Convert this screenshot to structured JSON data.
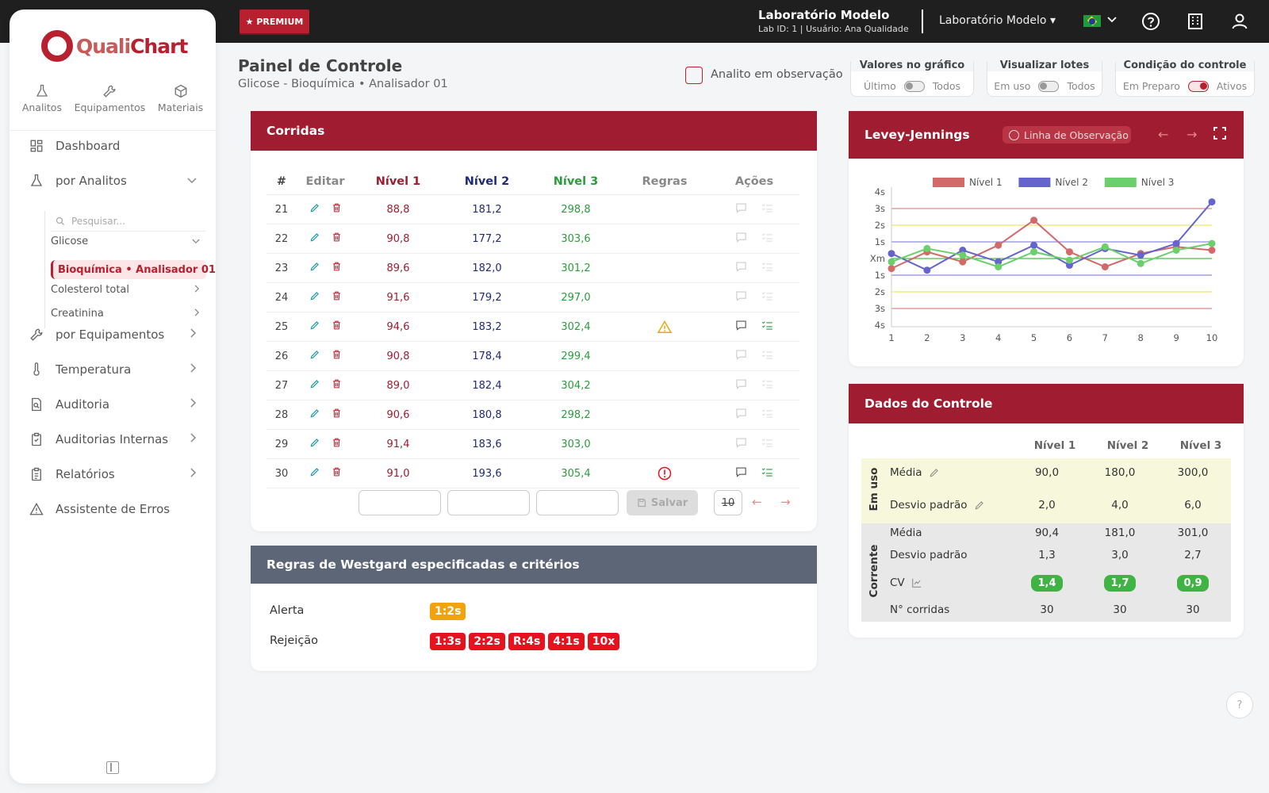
{
  "topbar": {
    "premium": "PREMIUM",
    "lab_name": "Laboratório Modelo",
    "lab_sub": "Lab ID: 1 | Usuário: Ana Qualidade",
    "lab_select": "Laboratório Modelo"
  },
  "sidebar": {
    "logo_main": "Quali",
    "logo_chart": "Chart",
    "tabs": [
      {
        "label": "Analitos",
        "icon": "flask-icon"
      },
      {
        "label": "Equipamentos",
        "icon": "wrench-icon"
      },
      {
        "label": "Materiais",
        "icon": "box-icon"
      }
    ],
    "items": [
      {
        "label": "Dashboard",
        "icon": "dashboard-icon"
      },
      {
        "label": "por Analitos",
        "icon": "flask-icon"
      },
      {
        "label": "por Equipamentos",
        "icon": "wrench-icon"
      },
      {
        "label": "Temperatura",
        "icon": "thermometer-icon"
      },
      {
        "label": "Auditoria",
        "icon": "audit-icon"
      },
      {
        "label": "Auditorias Internas",
        "icon": "clipboard-check-icon"
      },
      {
        "label": "Relatórios",
        "icon": "report-icon"
      },
      {
        "label": "Assistente de Erros",
        "icon": "warning-icon"
      }
    ],
    "search_placeholder": "Pesquisar...",
    "sub": {
      "glicose": "Glicose",
      "active": "Bioquímica • Analisador 01",
      "colesterol": "Colesterol total",
      "creatinina": "Creatinina"
    }
  },
  "header": {
    "title": "Painel de Controle",
    "subtitle": "Glicose - Bioquímica • Analisador 01",
    "obs_label": "Analito em observação",
    "toggles": [
      {
        "title": "Valores no gráfico",
        "left": "Último",
        "right": "Todos",
        "on": false
      },
      {
        "title": "Visualizar lotes",
        "left": "Em uso",
        "right": "Todos",
        "on": false
      },
      {
        "title": "Condição do controle",
        "left": "Em Preparo",
        "right": "Ativos",
        "on": true
      }
    ]
  },
  "corridas": {
    "title": "Corridas",
    "headers": {
      "num": "#",
      "edit": "Editar",
      "n1": "Nível 1",
      "n2": "Nível 2",
      "n3": "Nível 3",
      "rules": "Regras",
      "actions": "Ações"
    },
    "rows": [
      {
        "num": "21",
        "n1": "88,8",
        "n2": "181,2",
        "n3": "298,8",
        "rule": "",
        "note": false
      },
      {
        "num": "22",
        "n1": "90,8",
        "n2": "177,2",
        "n3": "303,6",
        "rule": "",
        "note": false
      },
      {
        "num": "23",
        "n1": "89,6",
        "n2": "182,0",
        "n3": "301,2",
        "rule": "",
        "note": false
      },
      {
        "num": "24",
        "n1": "91,6",
        "n2": "179,2",
        "n3": "297,0",
        "rule": "",
        "note": false
      },
      {
        "num": "25",
        "n1": "94,6",
        "n2": "183,2",
        "n3": "302,4",
        "rule": "warning",
        "note": true
      },
      {
        "num": "26",
        "n1": "90,8",
        "n2": "178,4",
        "n3": "299,4",
        "rule": "",
        "note": false
      },
      {
        "num": "27",
        "n1": "89,0",
        "n2": "182,4",
        "n3": "304,2",
        "rule": "",
        "note": false
      },
      {
        "num": "28",
        "n1": "90,6",
        "n2": "180,8",
        "n3": "298,2",
        "rule": "",
        "note": false
      },
      {
        "num": "29",
        "n1": "91,4",
        "n2": "183,6",
        "n3": "303,0",
        "rule": "",
        "note": false
      },
      {
        "num": "30",
        "n1": "91,0",
        "n2": "193,6",
        "n3": "305,4",
        "rule": "error",
        "note": true
      }
    ],
    "save_label": "Salvar",
    "page_size": "10"
  },
  "westgard": {
    "title": "Regras de Westgard especificadas e critérios",
    "alert_label": "Alerta",
    "reject_label": "Rejeição",
    "alert_rules": [
      "1:2s"
    ],
    "reject_rules": [
      "1:3s",
      "2:2s",
      "R:4s",
      "4:1s",
      "10x"
    ]
  },
  "lj": {
    "title": "Levey-Jennings",
    "obs_line": "Linha de Observação"
  },
  "chart_data": {
    "type": "line",
    "title": "",
    "x": [
      1,
      2,
      3,
      4,
      5,
      6,
      7,
      8,
      9,
      10
    ],
    "ylim": [
      -4,
      4
    ],
    "y_tick_labels": [
      "4s",
      "3s",
      "2s",
      "1s",
      "Xm",
      "1s",
      "2s",
      "3s",
      "4s"
    ],
    "grid": false,
    "legend_position": "top",
    "series": [
      {
        "name": "Nível 1",
        "color": "#d26a6a",
        "values": [
          -0.6,
          0.4,
          -0.2,
          0.8,
          2.3,
          0.4,
          -0.5,
          0.3,
          0.7,
          0.5
        ]
      },
      {
        "name": "Nível 2",
        "color": "#6464cc",
        "values": [
          0.3,
          -0.7,
          0.5,
          -0.2,
          0.8,
          -0.4,
          0.6,
          0.2,
          0.9,
          3.4
        ]
      },
      {
        "name": "Nível 3",
        "color": "#6bd06b",
        "values": [
          -0.2,
          0.6,
          0.2,
          -0.5,
          0.4,
          -0.1,
          0.7,
          -0.3,
          0.5,
          0.9
        ]
      }
    ],
    "reference_lines": [
      {
        "at": 3,
        "color": "#e08a8a"
      },
      {
        "at": -3,
        "color": "#e08a8a"
      },
      {
        "at": 2,
        "color": "#f2e36a"
      },
      {
        "at": -2,
        "color": "#f2e36a"
      },
      {
        "at": 1,
        "color": "#8c8ce0"
      },
      {
        "at": -1,
        "color": "#8c8ce0"
      },
      {
        "at": 0,
        "color": "#4cbc4c"
      }
    ]
  },
  "dados": {
    "title": "Dados do Controle",
    "headers": [
      "Nível 1",
      "Nível 2",
      "Nível 3"
    ],
    "em_uso_label": "Em uso",
    "corrente_label": "Corrente",
    "rows": {
      "eu_media": {
        "label": "Média",
        "v": [
          "90,0",
          "180,0",
          "300,0"
        ]
      },
      "eu_dp": {
        "label": "Desvio padrão",
        "v": [
          "2,0",
          "4,0",
          "6,0"
        ]
      },
      "c_media": {
        "label": "Média",
        "v": [
          "90,4",
          "181,0",
          "301,0"
        ]
      },
      "c_dp": {
        "label": "Desvio padrão",
        "v": [
          "1,3",
          "3,0",
          "2,7"
        ]
      },
      "c_cv": {
        "label": "CV",
        "v": [
          "1,4",
          "1,7",
          "0,9"
        ]
      },
      "c_n": {
        "label": "N° corridas",
        "v": [
          "30",
          "30",
          "30"
        ]
      }
    }
  }
}
